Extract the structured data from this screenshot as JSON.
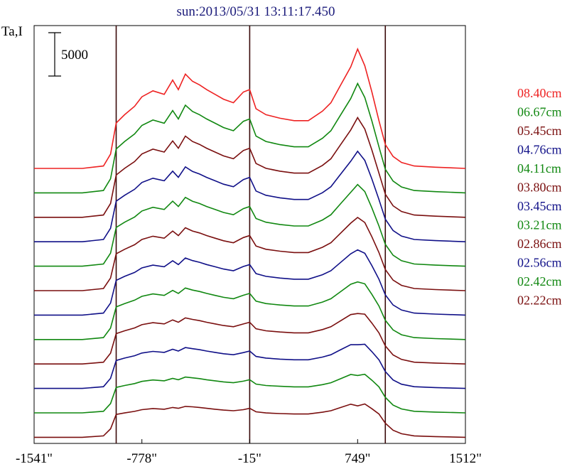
{
  "chart_data": {
    "type": "line",
    "title": "sun:2013/05/31 13:11:17.450",
    "ylabel": "Ta,I",
    "scale_bar_label": "5000",
    "scale_bar_value": 5000,
    "xlim": [
      -1541,
      1512
    ],
    "x_ticks": [
      {
        "value": -1541,
        "label": "-1541\""
      },
      {
        "value": -778,
        "label": "-778\""
      },
      {
        "value": -15,
        "label": "-15\""
      },
      {
        "value": 749,
        "label": "749\""
      },
      {
        "value": 1512,
        "label": "1512\""
      }
    ],
    "vertical_lines": [
      -960,
      -15,
      945
    ],
    "grid": false,
    "legend_position": "right",
    "series": [
      {
        "name": "08.40cm",
        "color": "#ee2222",
        "offset": 0
      },
      {
        "name": "06.67cm",
        "color": "#118811",
        "offset": 1
      },
      {
        "name": "05.45cm",
        "color": "#7a0f0f",
        "offset": 2
      },
      {
        "name": "04.76cm",
        "color": "#101088",
        "offset": 3
      },
      {
        "name": "04.11cm",
        "color": "#118811",
        "offset": 4
      },
      {
        "name": "03.80cm",
        "color": "#7a0f0f",
        "offset": 5
      },
      {
        "name": "03.45cm",
        "color": "#101088",
        "offset": 6
      },
      {
        "name": "03.21cm",
        "color": "#118811",
        "offset": 7
      },
      {
        "name": "02.86cm",
        "color": "#7a0f0f",
        "offset": 8
      },
      {
        "name": "02.56cm",
        "color": "#101088",
        "offset": 9
      },
      {
        "name": "02.42cm",
        "color": "#118811",
        "offset": 10
      },
      {
        "name": "02.22cm",
        "color": "#7a0f0f",
        "offset": 11
      }
    ],
    "profile_x": [
      -1541,
      -1200,
      -1050,
      -1000,
      -960,
      -900,
      -830,
      -778,
      -700,
      -620,
      -560,
      -520,
      -470,
      -420,
      -370,
      -320,
      -260,
      -200,
      -130,
      -60,
      -15,
      30,
      100,
      200,
      300,
      400,
      500,
      560,
      620,
      700,
      749,
      800,
      850,
      900,
      945,
      1000,
      1060,
      1150,
      1300,
      1512
    ]
  }
}
